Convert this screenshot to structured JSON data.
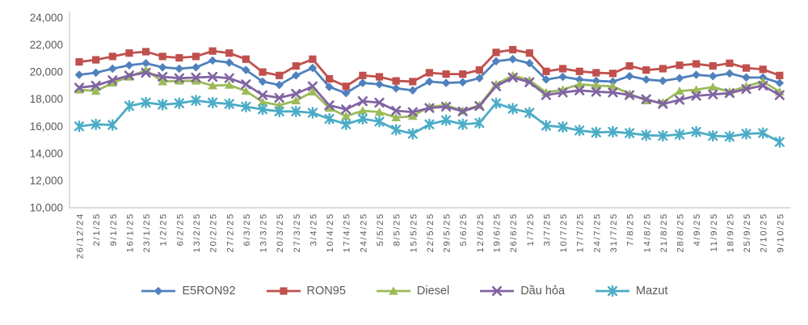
{
  "chart_data": {
    "type": "line",
    "title": "",
    "grid": false,
    "legend_position": "bottom",
    "axis_color": "#c8c8c8",
    "label_color": "#595959",
    "y_axis": {
      "min": 10000,
      "max": 24000,
      "step": 2000,
      "tick_labels": [
        "10,000",
        "12,000",
        "14,000",
        "16,000",
        "18,000",
        "20,000",
        "22,000",
        "24,000"
      ]
    },
    "x_categories": [
      "26/12/24",
      "2/1/25",
      "9/1/25",
      "16/1/25",
      "23/1/25",
      "1/2/25",
      "6/2/25",
      "13/2/25",
      "20/2/25",
      "27/2/25",
      "6/3/25",
      "13/3/25",
      "20/3/25",
      "27/3/25",
      "3/4/25",
      "10/4/25",
      "17/4/25",
      "24/4/25",
      "5/5/25",
      "8/5/25",
      "15/5/25",
      "22/5/25",
      "29/5/25",
      "5/6/25",
      "12/6/25",
      "19/6/25",
      "26/6/25",
      "1/7/25",
      "3/7/25",
      "10/7/25",
      "17/7/25",
      "24/7/25",
      "31/7/25",
      "7/8/25",
      "14/8/25",
      "21/8/25",
      "28/8/25",
      "4/9/25",
      "11/9/25",
      "18/9/25",
      "25/9/25",
      "2/10/25",
      "9/10/25"
    ],
    "series": [
      {
        "name": "E5RON92",
        "color": "#4F81BD",
        "marker": "diamond",
        "values": [
          19800,
          19950,
          20250,
          20500,
          20650,
          20350,
          20250,
          20350,
          20850,
          20700,
          20150,
          19300,
          19050,
          19750,
          20300,
          18900,
          18450,
          19200,
          19100,
          18800,
          18650,
          19300,
          19200,
          19250,
          19550,
          20800,
          20950,
          20650,
          19450,
          19650,
          19450,
          19350,
          19300,
          19700,
          19450,
          19350,
          19550,
          19800,
          19700,
          19900,
          19600,
          19600,
          19200
        ]
      },
      {
        "name": "RON95",
        "color": "#C0504D",
        "marker": "square",
        "values": [
          20750,
          20900,
          21150,
          21400,
          21500,
          21150,
          21050,
          21150,
          21550,
          21400,
          20950,
          20000,
          19750,
          20450,
          20950,
          19500,
          18950,
          19750,
          19650,
          19350,
          19300,
          19950,
          19850,
          19850,
          20150,
          21450,
          21650,
          21400,
          20050,
          20250,
          20050,
          19950,
          19900,
          20450,
          20150,
          20250,
          20500,
          20600,
          20450,
          20650,
          20300,
          20200,
          19750
        ]
      },
      {
        "name": "Diesel",
        "color": "#9BBB59",
        "marker": "triangle",
        "values": [
          18700,
          18600,
          19200,
          19650,
          20150,
          19300,
          19350,
          19350,
          19000,
          19050,
          18600,
          17800,
          17550,
          17900,
          18550,
          17350,
          16750,
          17150,
          17050,
          16650,
          16750,
          17450,
          17550,
          17150,
          17550,
          19100,
          19750,
          19400,
          18500,
          18700,
          19100,
          19000,
          18950,
          18400,
          17900,
          17750,
          18600,
          18700,
          18900,
          18550,
          18950,
          19300,
          18550
        ]
      },
      {
        "name": "Dầu hỏa",
        "color": "#8064A2",
        "marker": "x",
        "values": [
          18850,
          19000,
          19400,
          19750,
          19950,
          19650,
          19550,
          19600,
          19650,
          19550,
          19100,
          18300,
          18100,
          18400,
          18950,
          17550,
          17250,
          17850,
          17750,
          17150,
          17050,
          17350,
          17450,
          17100,
          17500,
          18950,
          19600,
          19250,
          18300,
          18500,
          18650,
          18550,
          18500,
          18300,
          18000,
          17650,
          17950,
          18250,
          18350,
          18450,
          18750,
          19000,
          18300
        ]
      },
      {
        "name": "Mazut",
        "color": "#4BACC6",
        "marker": "star",
        "values": [
          16000,
          16150,
          16100,
          17500,
          17750,
          17600,
          17700,
          17900,
          17750,
          17650,
          17450,
          17250,
          17100,
          17100,
          17000,
          16550,
          16150,
          16550,
          16350,
          15750,
          15450,
          16150,
          16450,
          16150,
          16250,
          17700,
          17300,
          17000,
          16050,
          15950,
          15700,
          15550,
          15600,
          15500,
          15350,
          15300,
          15400,
          15600,
          15300,
          15250,
          15450,
          15500,
          14850
        ]
      }
    ]
  }
}
